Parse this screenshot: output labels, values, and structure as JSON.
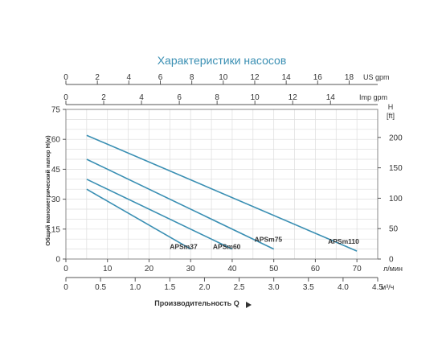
{
  "chart_data": {
    "type": "line",
    "title": "Характеристики насосов",
    "top_axes": [
      {
        "unit_label": "US gpm",
        "ticks": [
          0,
          2,
          4,
          6,
          8,
          10,
          12,
          14,
          16,
          18
        ]
      },
      {
        "unit_label": "Imp gpm",
        "ticks": [
          0,
          2,
          4,
          6,
          8,
          10,
          12,
          14
        ]
      }
    ],
    "x_lmin": {
      "unit_label": "л/мин",
      "ticks": [
        0,
        10,
        20,
        30,
        40,
        50,
        60,
        70
      ],
      "range": [
        0,
        75
      ]
    },
    "x_m3h": {
      "unit_label": "м³/ч",
      "ticks": [
        "0",
        "0.5",
        "1.0",
        "1.5",
        "2.0",
        "2.5",
        "3.0",
        "3.5",
        "4.0",
        "4.5"
      ]
    },
    "xlabel": "Производительность Q",
    "y_left": {
      "label": "Общий манометрический напор H(м)",
      "ticks": [
        0,
        15,
        30,
        45,
        60,
        75
      ],
      "range": [
        0,
        75
      ]
    },
    "y_right": {
      "label": "H [ft]",
      "ticks": [
        0,
        50,
        100,
        150,
        200
      ]
    },
    "grid": true,
    "series_color": "#3a8fb3",
    "series": [
      {
        "name": "APSm37",
        "x": [
          5,
          30
        ],
        "y": [
          35,
          5
        ]
      },
      {
        "name": "APSm60",
        "x": [
          5,
          40
        ],
        "y": [
          40,
          5
        ]
      },
      {
        "name": "APSm75",
        "x": [
          5,
          50
        ],
        "y": [
          50,
          5
        ]
      },
      {
        "name": "APSm110",
        "x": [
          5,
          70
        ],
        "y": [
          62,
          4
        ]
      }
    ]
  }
}
